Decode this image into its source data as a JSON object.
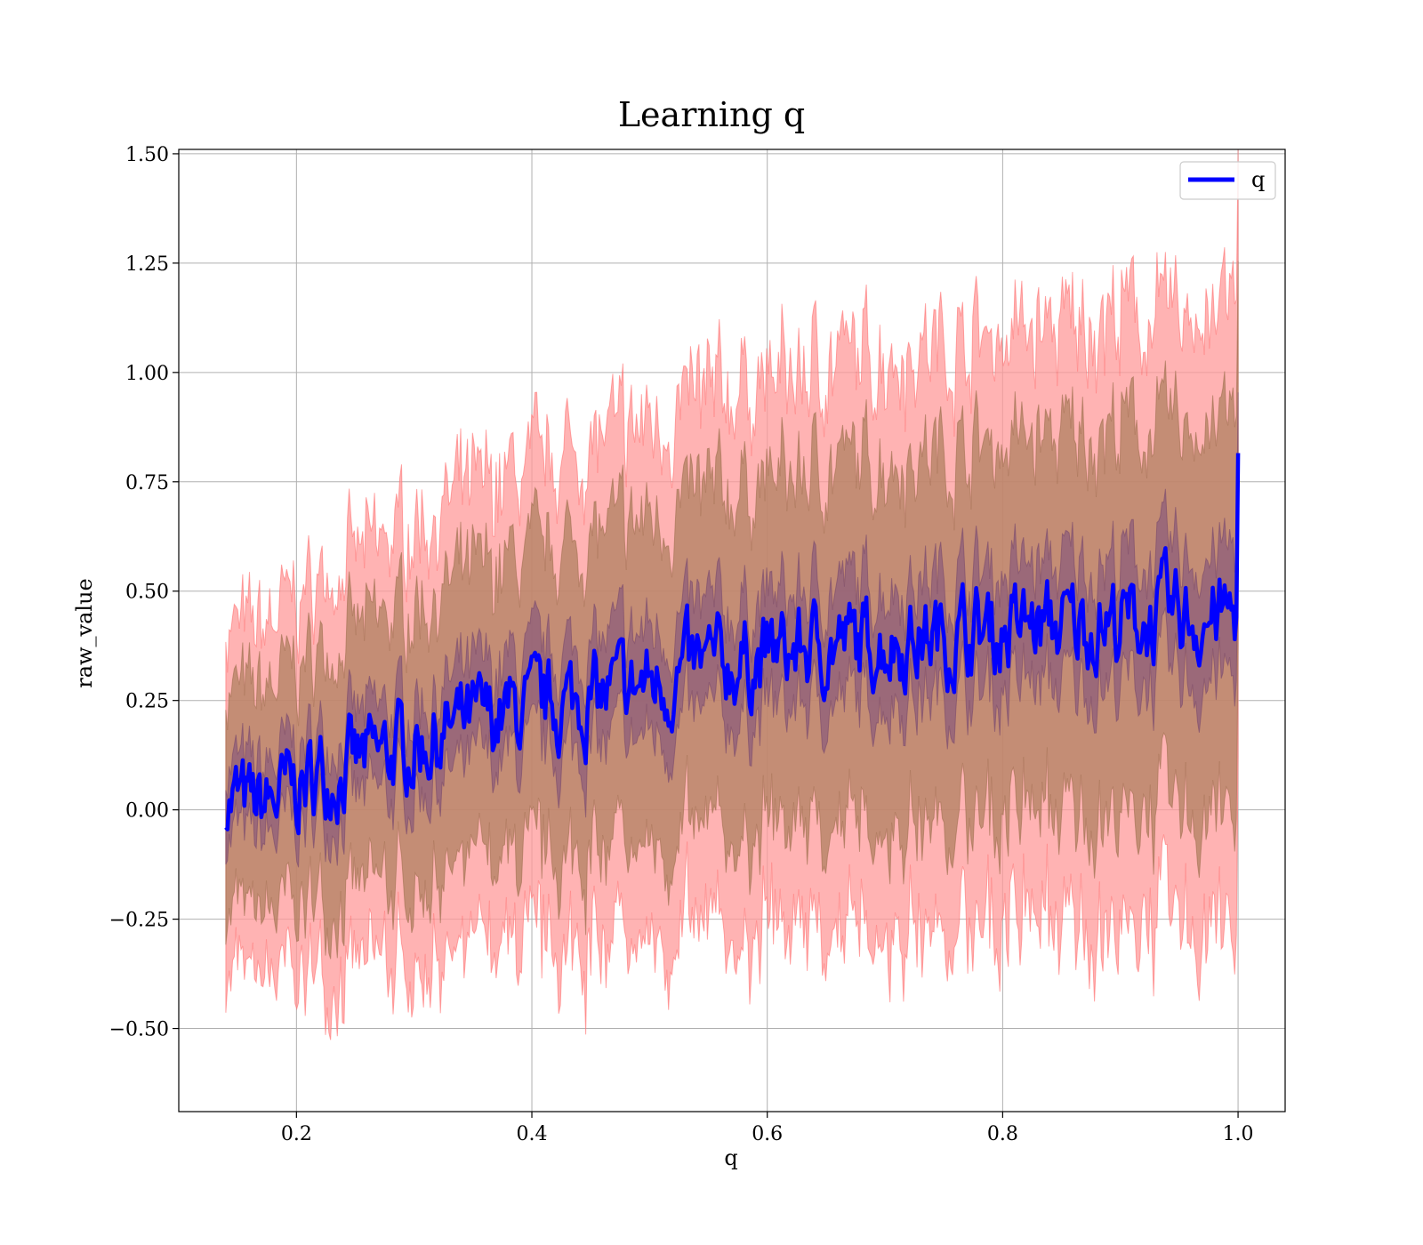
{
  "chart_data": {
    "type": "line",
    "title": "Learning q",
    "xlabel": "q",
    "ylabel": "raw_value",
    "xlim": [
      0.1,
      1.04
    ],
    "ylim": [
      -0.69,
      1.51
    ],
    "x_ticks": [
      0.2,
      0.4,
      0.6,
      0.8,
      1.0
    ],
    "x_tick_labels": [
      "0.2",
      "0.4",
      "0.6",
      "0.8",
      "1.0"
    ],
    "y_ticks": [
      -0.5,
      -0.25,
      0.0,
      0.25,
      0.5,
      0.75,
      1.0,
      1.25,
      1.5
    ],
    "y_tick_labels": [
      "−0.50",
      "−0.25",
      "0.00",
      "0.25",
      "0.50",
      "0.75",
      "1.00",
      "1.25",
      "1.50"
    ],
    "grid": true,
    "legend": {
      "position": "top-right",
      "entries": [
        "q"
      ]
    },
    "colors": {
      "mean": "#0000ff",
      "band_outer": "#ff9a9a",
      "band_mid": "#b08060",
      "band_inner": "#8a5a7a"
    },
    "series": [
      {
        "name": "q",
        "x": [
          0.14,
          0.16,
          0.18,
          0.2,
          0.22,
          0.24,
          0.26,
          0.28,
          0.3,
          0.32,
          0.34,
          0.36,
          0.38,
          0.4,
          0.42,
          0.44,
          0.46,
          0.48,
          0.5,
          0.52,
          0.54,
          0.56,
          0.58,
          0.6,
          0.62,
          0.64,
          0.66,
          0.68,
          0.7,
          0.72,
          0.74,
          0.76,
          0.78,
          0.8,
          0.82,
          0.84,
          0.86,
          0.88,
          0.9,
          0.92,
          0.94,
          0.96,
          0.98,
          1.0
        ],
        "mean": [
          0.04,
          0.0,
          0.02,
          0.05,
          0.08,
          0.1,
          0.11,
          0.13,
          0.15,
          0.17,
          0.19,
          0.2,
          0.22,
          0.22,
          0.24,
          0.25,
          0.26,
          0.27,
          0.29,
          0.3,
          0.32,
          0.33,
          0.34,
          0.35,
          0.36,
          0.37,
          0.38,
          0.38,
          0.39,
          0.39,
          0.4,
          0.4,
          0.41,
          0.41,
          0.42,
          0.42,
          0.42,
          0.43,
          0.43,
          0.43,
          0.44,
          0.44,
          0.44,
          0.45
        ],
        "std": [
          0.25,
          0.26,
          0.27,
          0.28,
          0.29,
          0.3,
          0.31,
          0.32,
          0.33,
          0.33,
          0.34,
          0.35,
          0.35,
          0.36,
          0.37,
          0.37,
          0.38,
          0.38,
          0.39,
          0.39,
          0.4,
          0.4,
          0.41,
          0.41,
          0.41,
          0.42,
          0.42,
          0.42,
          0.43,
          0.43,
          0.43,
          0.43,
          0.44,
          0.44,
          0.44,
          0.44,
          0.44,
          0.45,
          0.45,
          0.45,
          0.45,
          0.45,
          0.46,
          0.46
        ]
      }
    ]
  }
}
